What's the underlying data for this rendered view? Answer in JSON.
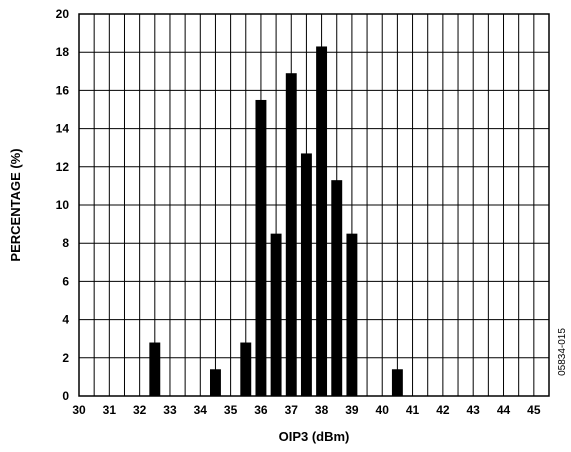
{
  "chart_data": {
    "type": "bar",
    "xlabel": "OIP3 (dBm)",
    "ylabel": "PERCENTAGE (%)",
    "xlim": [
      30,
      45.5
    ],
    "ylim": [
      0,
      20
    ],
    "x_ticks": [
      30,
      31,
      32,
      33,
      34,
      35,
      36,
      37,
      38,
      39,
      40,
      41,
      42,
      43,
      44,
      45
    ],
    "y_ticks": [
      0,
      2,
      4,
      6,
      8,
      10,
      12,
      14,
      16,
      18,
      20
    ],
    "grid": true,
    "bars": [
      {
        "x": 32.5,
        "value": 2.8
      },
      {
        "x": 34.5,
        "value": 1.4
      },
      {
        "x": 35.5,
        "value": 2.8
      },
      {
        "x": 36.0,
        "value": 15.5
      },
      {
        "x": 36.5,
        "value": 8.5
      },
      {
        "x": 37.0,
        "value": 16.9
      },
      {
        "x": 37.5,
        "value": 12.7
      },
      {
        "x": 38.0,
        "value": 18.3
      },
      {
        "x": 38.5,
        "value": 11.3
      },
      {
        "x": 39.0,
        "value": 8.5
      },
      {
        "x": 40.5,
        "value": 1.4
      }
    ],
    "bar_color": "#000000",
    "figure_code": "05834-015"
  }
}
